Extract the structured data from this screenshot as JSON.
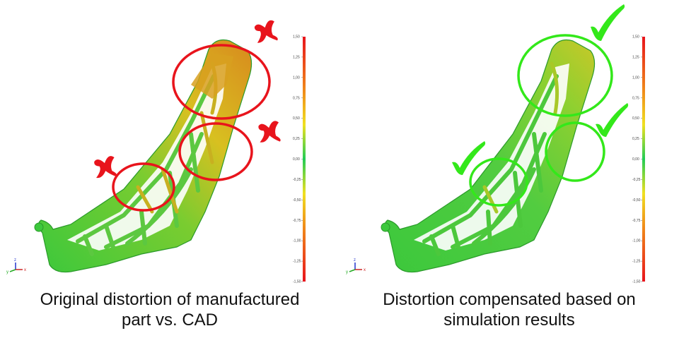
{
  "colors": {
    "red_marker": "#e8141c",
    "green_marker": "#33e81a",
    "part_green": "#3cc83c",
    "part_yellow": "#d8d020",
    "part_orange": "#d88a1e"
  },
  "scale": {
    "ticks": [
      "1,50",
      "1,25",
      "1,00",
      "0,75",
      "0,50",
      "0,25",
      "0,00",
      "-0,25",
      "-0,50",
      "-0,75",
      "-1,00",
      "-1,25",
      "-1,50"
    ]
  },
  "axes": {
    "z": "z",
    "y": "y",
    "x": "x"
  },
  "left_panel": {
    "caption_line1": "Original distortion of manufactured",
    "caption_line2": "part vs. CAD",
    "marker_icon": "cross-mark-icon"
  },
  "right_panel": {
    "caption_line1": "Distortion compensated based on",
    "caption_line2": "simulation results",
    "marker_icon": "check-mark-icon"
  }
}
